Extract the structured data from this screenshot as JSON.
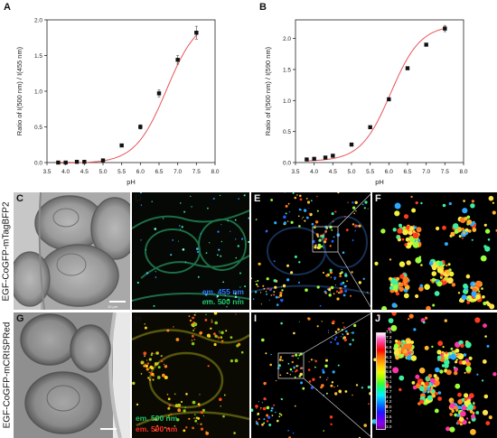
{
  "colors": {
    "curve": "#e8545a",
    "marker": "#111111",
    "em455": "#2f7bff",
    "em500": "#22c26a",
    "em590": "#ff2a2a"
  },
  "chart_data": [
    {
      "type": "scatter",
      "panel_label": "A",
      "xlabel": "pH",
      "ylabel": "Ratio of I(500 nm) / I(455 nm)",
      "xlim": [
        3.5,
        8.0
      ],
      "ylim": [
        0.0,
        2.0
      ],
      "xticks": [
        "3.5",
        "4.0",
        "4.5",
        "5.0",
        "5.5",
        "6.0",
        "6.5",
        "7.0",
        "7.5",
        "8.0"
      ],
      "yticks": [
        "0.0",
        "0.5",
        "1.0",
        "1.5",
        "2.0"
      ],
      "x": [
        3.8,
        4.0,
        4.3,
        4.5,
        5.0,
        5.5,
        6.0,
        6.5,
        7.0,
        7.5
      ],
      "y": [
        0.0,
        0.0,
        0.01,
        0.01,
        0.03,
        0.24,
        0.5,
        0.97,
        1.44,
        1.82
      ],
      "yerr": [
        0.01,
        0.01,
        0.01,
        0.01,
        0.01,
        0.02,
        0.03,
        0.05,
        0.06,
        0.09
      ],
      "fit": {
        "bottom": -0.01,
        "top": 2.05,
        "x0": 6.7,
        "slope": 0.42
      }
    },
    {
      "type": "scatter",
      "panel_label": "B",
      "xlabel": "pH",
      "ylabel": "Ratio of I(500 nm) / I(590 nm)",
      "xlim": [
        3.5,
        8.0
      ],
      "ylim": [
        0.0,
        2.3
      ],
      "xticks": [
        "3.5",
        "4.0",
        "4.5",
        "5.0",
        "5.5",
        "6.0",
        "6.5",
        "7.0",
        "7.5",
        "8.0"
      ],
      "yticks": [
        "0.0",
        "0.5",
        "1.0",
        "1.5",
        "2.0"
      ],
      "x": [
        3.8,
        4.0,
        4.3,
        4.5,
        5.0,
        5.5,
        6.0,
        6.5,
        7.0,
        7.5
      ],
      "y": [
        0.05,
        0.06,
        0.08,
        0.11,
        0.29,
        0.57,
        1.02,
        1.52,
        1.9,
        2.16
      ],
      "yerr": [
        0.01,
        0.01,
        0.01,
        0.01,
        0.01,
        0.02,
        0.02,
        0.02,
        0.02,
        0.05
      ],
      "fit": {
        "bottom": 0.02,
        "top": 2.22,
        "x0": 6.05,
        "slope": 0.4
      }
    }
  ],
  "micrographs": {
    "row1_label": "EGF-CoGFP-mTagBFP2",
    "row2_label": "EGF-CoGFP-mCRISPRed",
    "panels": [
      "C",
      "D",
      "E",
      "F",
      "G",
      "H",
      "I",
      "J"
    ],
    "scale_bar_c": "10 μm",
    "d_em1": "em. 455 nm",
    "d_em2": "em. 500 nm",
    "h_em1": "em. 500 nm",
    "h_em2": "em. 590 nm",
    "colorbar_ticks": [
      "7.5",
      "7.3",
      "7.0",
      "6.8",
      "6.6",
      "6.3",
      "6.1",
      "5.8",
      "5.6",
      "5.4",
      "5.1",
      "4.9",
      "4.7",
      "4.4",
      "4.2",
      "4.0",
      "3.7",
      "3.5",
      "3.3",
      "3.0"
    ]
  }
}
